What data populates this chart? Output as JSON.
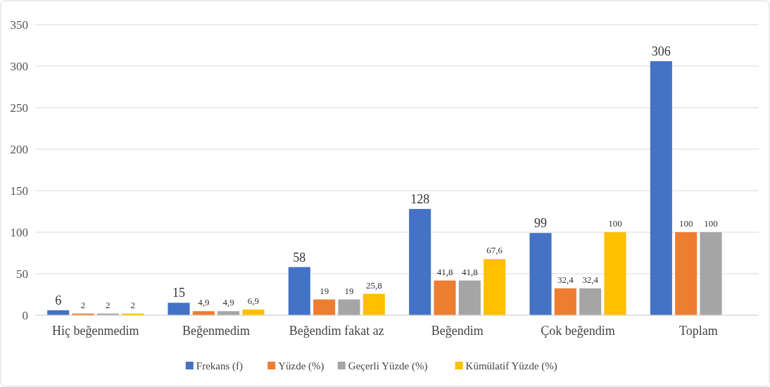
{
  "chart_data": {
    "type": "bar",
    "categories": [
      "Hiç beğenmedim",
      "Beğenmedim",
      "Beğendim fakat az",
      "Beğendim",
      "Çok beğendim",
      "Toplam"
    ],
    "series": [
      {
        "name": "Frekans (f)",
        "color": "#4472c4",
        "values": [
          6,
          15,
          58,
          128,
          99,
          306
        ],
        "value_labels": [
          "6",
          "15",
          "58",
          "128",
          "99",
          "306"
        ]
      },
      {
        "name": "Yüzde (%)",
        "color": "#ed7d31",
        "values": [
          2,
          4.9,
          19,
          41.8,
          32.4,
          100
        ],
        "value_labels": [
          "2",
          "4,9",
          "19",
          "41,8",
          "32,4",
          "100"
        ]
      },
      {
        "name": "Geçerli Yüzde (%)",
        "color": "#a5a5a5",
        "values": [
          2,
          4.9,
          19,
          41.8,
          32.4,
          100
        ],
        "value_labels": [
          "2",
          "4,9",
          "19",
          "41,8",
          "32,4",
          "100"
        ]
      },
      {
        "name": "Kümülatif Yüzde (%)",
        "color": "#ffc000",
        "values": [
          2,
          6.9,
          25.8,
          67.6,
          100,
          null
        ],
        "value_labels": [
          "2",
          "6,9",
          "25,8",
          "67,6",
          "100",
          null
        ]
      }
    ],
    "ylim": [
      0,
      350
    ],
    "yticks": [
      0,
      50,
      100,
      150,
      200,
      250,
      300,
      350
    ],
    "grid": "y",
    "legend": "bottom"
  }
}
